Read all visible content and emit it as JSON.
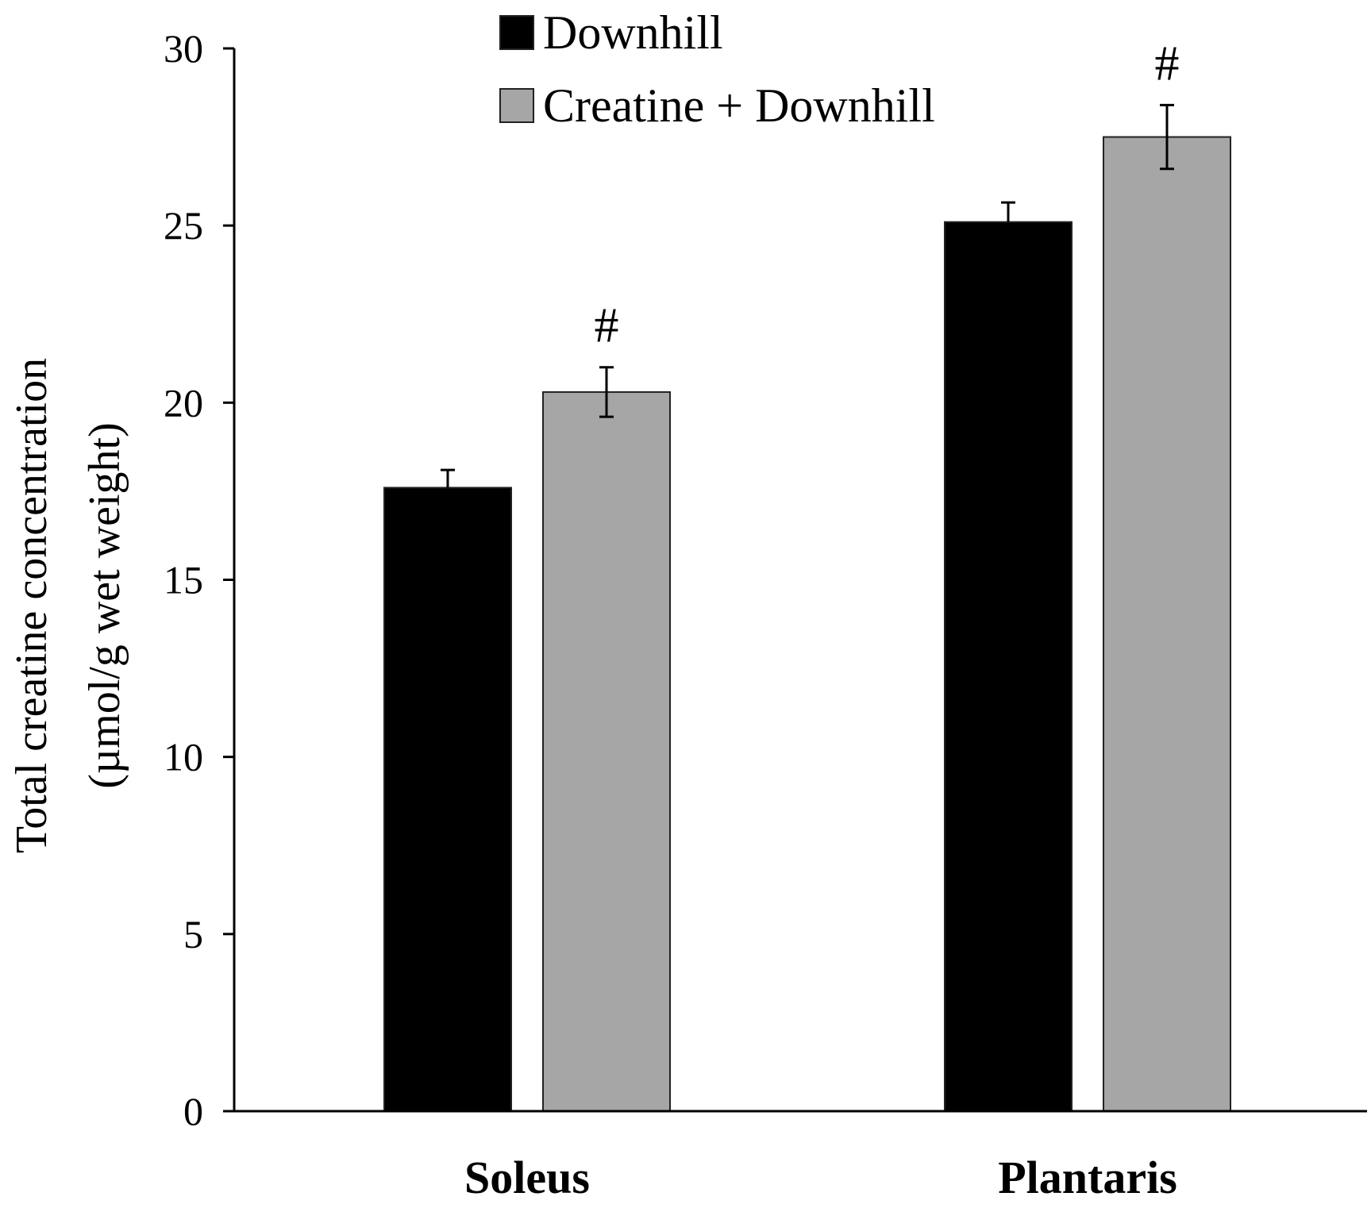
{
  "chart_data": {
    "type": "bar",
    "title": "",
    "xlabel": "",
    "ylabel_line1": "Total creatine concentration",
    "ylabel_line2": "(µmol/g wet weight)",
    "ylim": [
      0,
      30
    ],
    "yticks": [
      0,
      5,
      10,
      15,
      20,
      25,
      30
    ],
    "categories": [
      "Soleus",
      "Plantaris"
    ],
    "legend_position": "top-center",
    "series": [
      {
        "name": "Downhill",
        "color": "#000000",
        "values": [
          17.6,
          25.1
        ],
        "errors": [
          0.5,
          0.55
        ],
        "annotations": [
          "",
          ""
        ]
      },
      {
        "name": "Creatine + Downhill",
        "color": "#a6a6a6",
        "values": [
          20.3,
          27.5
        ],
        "errors": [
          0.7,
          0.9
        ],
        "annotations": [
          "#",
          "#"
        ]
      }
    ]
  }
}
